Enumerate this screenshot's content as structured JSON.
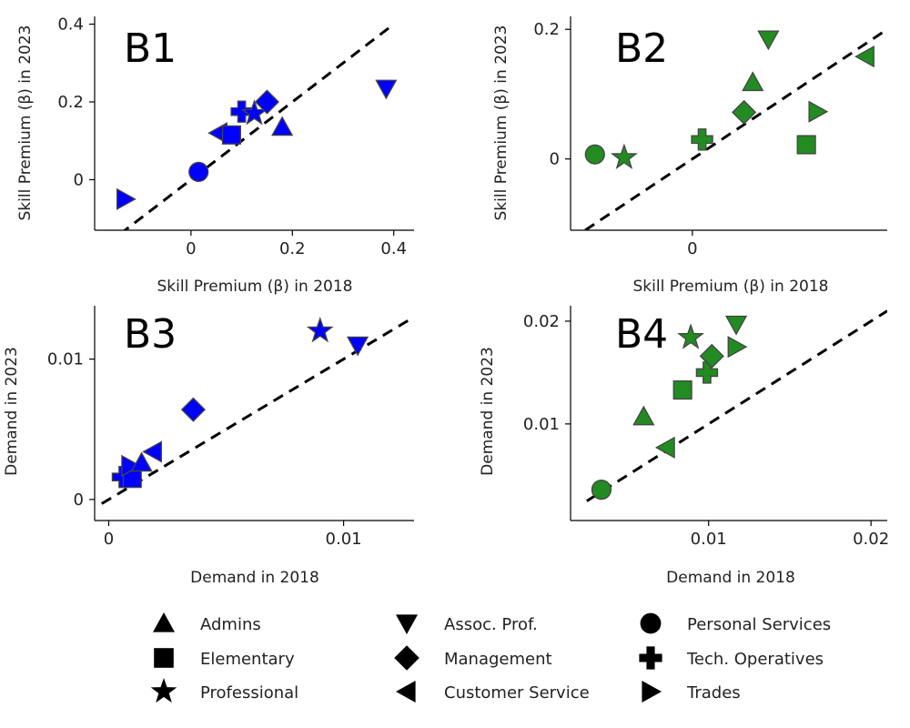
{
  "chart_data": [
    {
      "type": "scatter",
      "panel_label": "B1",
      "xlabel": "Skill Premium (β) in 2018",
      "ylabel": "Skill Premium (β) in 2023",
      "color": "#0000ff",
      "xlim": [
        -0.19,
        0.44
      ],
      "ylim": [
        -0.13,
        0.42
      ],
      "xticks": [
        {
          "v": 0,
          "label": "0"
        },
        {
          "v": 0.2,
          "label": "0.2"
        },
        {
          "v": 0.4,
          "label": "0.4"
        }
      ],
      "yticks": [
        {
          "v": 0,
          "label": "0"
        },
        {
          "v": 0.2,
          "label": "0.2"
        },
        {
          "v": 0.4,
          "label": "0.4"
        }
      ],
      "diagonal": [
        -0.14,
        0.4
      ],
      "points": [
        {
          "category": "Personal Services",
          "x": 0.015,
          "y": 0.02
        },
        {
          "category": "Trades",
          "x": -0.13,
          "y": -0.05
        },
        {
          "category": "Customer Service",
          "x": 0.055,
          "y": 0.12
        },
        {
          "category": "Elementary",
          "x": 0.08,
          "y": 0.115
        },
        {
          "category": "Tech. Operatives",
          "x": 0.1,
          "y": 0.175
        },
        {
          "category": "Professional",
          "x": 0.125,
          "y": 0.17
        },
        {
          "category": "Management",
          "x": 0.15,
          "y": 0.2
        },
        {
          "category": "Admins",
          "x": 0.18,
          "y": 0.135
        },
        {
          "category": "Assoc. Prof.",
          "x": 0.385,
          "y": 0.235
        }
      ]
    },
    {
      "type": "scatter",
      "panel_label": "B2",
      "xlabel": "Skill Premium (β) in 2018",
      "ylabel": "Skill Premium (β) in 2023",
      "color": "#228b22",
      "xlim": [
        -0.125,
        0.2
      ],
      "ylim": [
        -0.11,
        0.22
      ],
      "xticks": [
        {
          "v": 0,
          "label": "0"
        }
      ],
      "yticks": [
        {
          "v": 0,
          "label": "0"
        },
        {
          "v": 0.2,
          "label": "0.2"
        }
      ],
      "diagonal": [
        -0.11,
        0.2
      ],
      "points": [
        {
          "category": "Personal Services",
          "x": -0.1,
          "y": 0.007
        },
        {
          "category": "Professional",
          "x": -0.07,
          "y": 0.002
        },
        {
          "category": "Tech. Operatives",
          "x": 0.01,
          "y": 0.03
        },
        {
          "category": "Management",
          "x": 0.053,
          "y": 0.072
        },
        {
          "category": "Admins",
          "x": 0.062,
          "y": 0.118
        },
        {
          "category": "Assoc. Prof.",
          "x": 0.078,
          "y": 0.185
        },
        {
          "category": "Elementary",
          "x": 0.117,
          "y": 0.022
        },
        {
          "category": "Trades",
          "x": 0.128,
          "y": 0.073
        },
        {
          "category": "Customer Service",
          "x": 0.178,
          "y": 0.158
        }
      ]
    },
    {
      "type": "scatter",
      "panel_label": "B3",
      "xlabel": "Demand in 2018",
      "ylabel": "Demand in 2023",
      "color": "#0000ff",
      "xlim": [
        -0.0006,
        0.013
      ],
      "ylim": [
        -0.0015,
        0.0138
      ],
      "xticks": [
        {
          "v": 0,
          "label": "0"
        },
        {
          "v": 0.01,
          "label": "0.01"
        }
      ],
      "yticks": [
        {
          "v": 0,
          "label": "0"
        },
        {
          "v": 0.01,
          "label": "0.01"
        }
      ],
      "diagonal": [
        -0.0003,
        0.013
      ],
      "points": [
        {
          "category": "Tech. Operatives",
          "x": 0.0006,
          "y": 0.0016
        },
        {
          "category": "Elementary",
          "x": 0.001,
          "y": 0.0015
        },
        {
          "category": "Trades",
          "x": 0.0009,
          "y": 0.0024
        },
        {
          "category": "Admins",
          "x": 0.0014,
          "y": 0.0026
        },
        {
          "category": "Customer Service",
          "x": 0.0019,
          "y": 0.0034
        },
        {
          "category": "Management",
          "x": 0.0036,
          "y": 0.0064
        },
        {
          "category": "Professional",
          "x": 0.009,
          "y": 0.012
        },
        {
          "category": "Assoc. Prof.",
          "x": 0.0106,
          "y": 0.011
        }
      ]
    },
    {
      "type": "scatter",
      "panel_label": "B4",
      "xlabel": "Demand in 2018",
      "ylabel": "Demand in 2023",
      "color": "#228b22",
      "xlim": [
        0.0015,
        0.021
      ],
      "ylim": [
        0.0006,
        0.0215
      ],
      "xticks": [
        {
          "v": 0.01,
          "label": "0.01"
        },
        {
          "v": 0.02,
          "label": "0.02"
        }
      ],
      "yticks": [
        {
          "v": 0.01,
          "label": "0.01"
        },
        {
          "v": 0.02,
          "label": "0.02"
        }
      ],
      "diagonal": [
        0.0025,
        0.021
      ],
      "points": [
        {
          "category": "Personal Services",
          "x": 0.0034,
          "y": 0.0036
        },
        {
          "category": "Customer Service",
          "x": 0.0074,
          "y": 0.0077
        },
        {
          "category": "Admins",
          "x": 0.006,
          "y": 0.0107
        },
        {
          "category": "Elementary",
          "x": 0.0084,
          "y": 0.0133
        },
        {
          "category": "Tech. Operatives",
          "x": 0.0099,
          "y": 0.015
        },
        {
          "category": "Management",
          "x": 0.0102,
          "y": 0.0166
        },
        {
          "category": "Professional",
          "x": 0.0089,
          "y": 0.0184
        },
        {
          "category": "Trades",
          "x": 0.0117,
          "y": 0.0175
        },
        {
          "category": "Assoc. Prof.",
          "x": 0.0117,
          "y": 0.0197
        }
      ]
    }
  ],
  "legend": [
    {
      "label": "Admins",
      "marker": "triangle-up"
    },
    {
      "label": "Elementary",
      "marker": "square"
    },
    {
      "label": "Professional",
      "marker": "star"
    },
    {
      "label": "Assoc. Prof.",
      "marker": "triangle-down"
    },
    {
      "label": "Management",
      "marker": "diamond"
    },
    {
      "label": "Customer Service",
      "marker": "triangle-left"
    },
    {
      "label": "Personal Services",
      "marker": "circle"
    },
    {
      "label": "Tech. Operatives",
      "marker": "cross"
    },
    {
      "label": "Trades",
      "marker": "triangle-right"
    }
  ]
}
